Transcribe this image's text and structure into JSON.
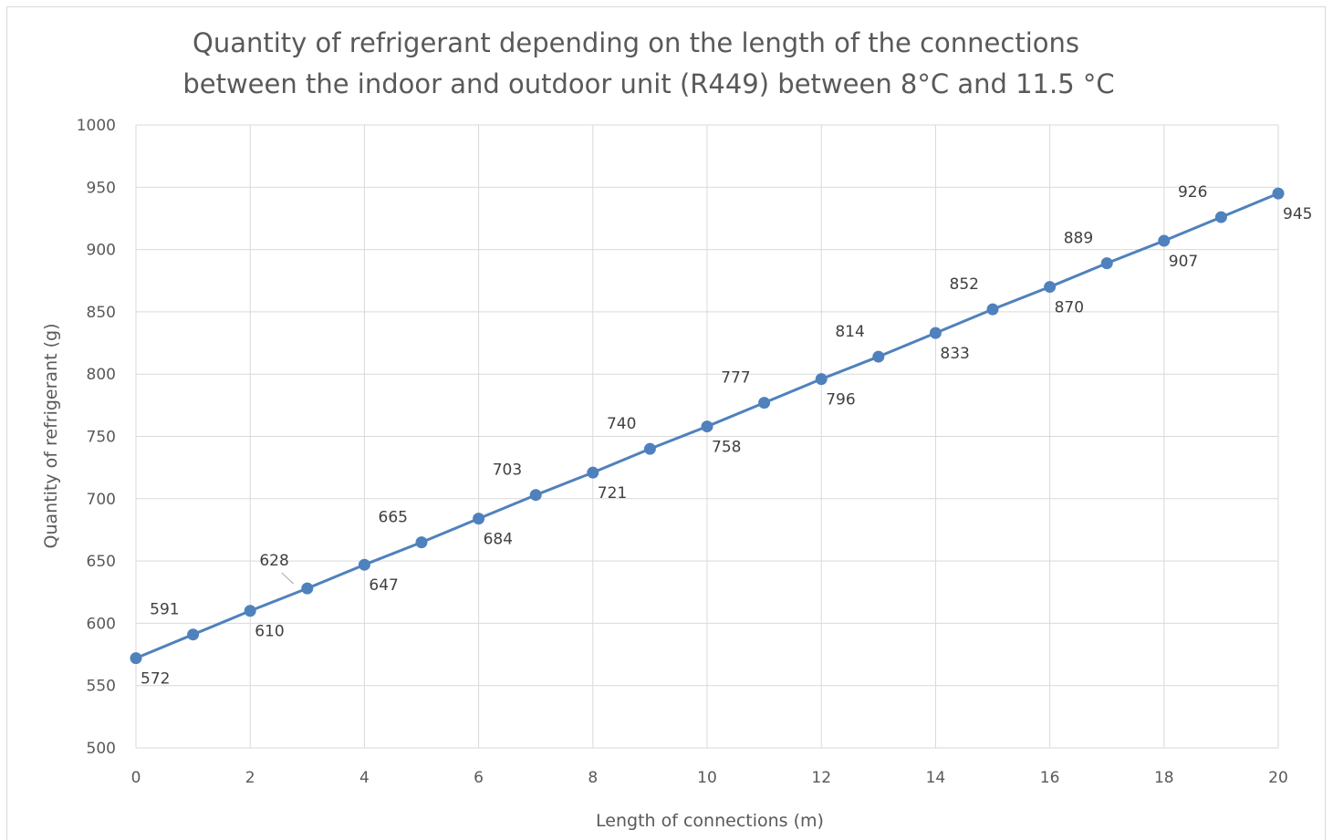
{
  "chart_data": {
    "type": "line",
    "title": [
      "Quantity of refrigerant depending on the length of the connections",
      "between the indoor and outdoor unit (R449) between 8°C and 11.5 °C"
    ],
    "xlabel": "Length of connections (m)",
    "ylabel": "Quantity of refrigerant (g)",
    "xlim": [
      0,
      20
    ],
    "ylim": [
      500,
      1000
    ],
    "x_ticks": [
      0,
      2,
      4,
      6,
      8,
      10,
      12,
      14,
      16,
      18,
      20
    ],
    "y_ticks": [
      500,
      550,
      600,
      650,
      700,
      750,
      800,
      850,
      900,
      950,
      1000
    ],
    "grid": true,
    "legend": "none",
    "series_color": "#4f81bd",
    "x": [
      0,
      1,
      2,
      3,
      4,
      5,
      6,
      7,
      8,
      9,
      10,
      11,
      12,
      13,
      14,
      15,
      16,
      17,
      18,
      19,
      20
    ],
    "values": [
      572,
      591,
      610,
      628,
      647,
      665,
      684,
      703,
      721,
      740,
      758,
      777,
      796,
      814,
      833,
      852,
      870,
      889,
      907,
      926,
      945
    ],
    "labels": [
      "572",
      "591",
      "610",
      "628",
      "647",
      "665",
      "684",
      "703",
      "721",
      "740",
      "758",
      "777",
      "796",
      "814",
      "833",
      "852",
      "870",
      "889",
      "907",
      "926",
      "945"
    ]
  }
}
